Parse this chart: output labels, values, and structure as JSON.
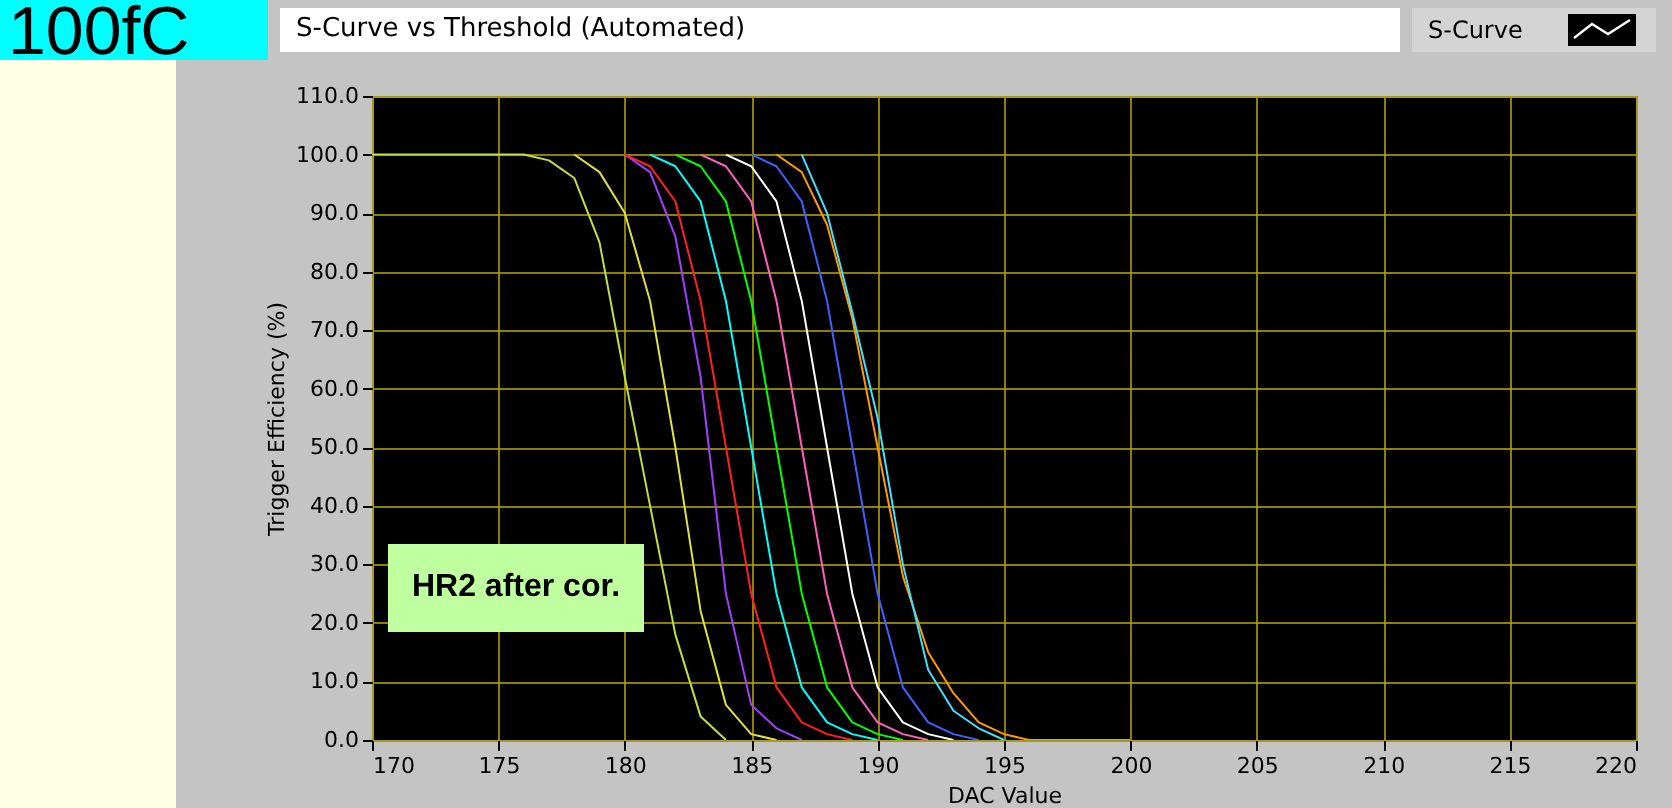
{
  "chart_data": {
    "type": "line",
    "title": "S-Curve vs Threshold (Automated)",
    "xlabel": "DAC Value",
    "ylabel": "Trigger Efficiency (%)",
    "annotations": [
      "100fC",
      "HR2 after cor.",
      "S-Curve"
    ],
    "series": [
      {
        "color": "#c0e040",
        "x": [
          170,
          171,
          172,
          173,
          174,
          175,
          176,
          177,
          178,
          179,
          180,
          181,
          182,
          183,
          184
        ],
        "values": [
          100,
          100,
          100,
          100,
          100,
          100,
          100,
          99,
          96,
          85,
          62,
          40,
          18,
          4,
          0
        ]
      },
      {
        "color": "#e0e040",
        "x": [
          178,
          179,
          180,
          181,
          182,
          183,
          184,
          185,
          186
        ],
        "values": [
          100,
          97,
          90,
          75,
          50,
          22,
          6,
          1,
          0
        ]
      },
      {
        "color": "#a040ff",
        "x": [
          180,
          181,
          182,
          183,
          184,
          185,
          186,
          187
        ],
        "values": [
          100,
          97,
          86,
          62,
          25,
          6,
          2,
          0
        ]
      },
      {
        "color": "#ff2020",
        "x": [
          180,
          181,
          182,
          183,
          184,
          185,
          186,
          187,
          188,
          189
        ],
        "values": [
          100,
          98,
          92,
          75,
          50,
          25,
          9,
          3,
          1,
          0
        ]
      },
      {
        "color": "#00ffff",
        "x": [
          181,
          182,
          183,
          184,
          185,
          186,
          187,
          188,
          189,
          190
        ],
        "values": [
          100,
          98,
          92,
          75,
          50,
          25,
          9,
          3,
          1,
          0
        ]
      },
      {
        "color": "#00ff00",
        "x": [
          182,
          183,
          184,
          185,
          186,
          187,
          188,
          189,
          190,
          191
        ],
        "values": [
          100,
          98,
          92,
          75,
          50,
          25,
          9,
          3,
          1,
          0
        ]
      },
      {
        "color": "#ff60c0",
        "x": [
          183,
          184,
          185,
          186,
          187,
          188,
          189,
          190,
          191,
          192
        ],
        "values": [
          100,
          98,
          92,
          75,
          50,
          25,
          9,
          3,
          1,
          0
        ]
      },
      {
        "color": "#ffffff",
        "x": [
          184,
          185,
          186,
          187,
          188,
          189,
          190,
          191,
          192,
          193
        ],
        "values": [
          100,
          98,
          92,
          75,
          50,
          25,
          9,
          3,
          1,
          0
        ]
      },
      {
        "color": "#4060ff",
        "x": [
          185,
          186,
          187,
          188,
          189,
          190,
          191,
          192,
          193,
          194
        ],
        "values": [
          100,
          98,
          92,
          75,
          50,
          25,
          9,
          3,
          1,
          0
        ]
      },
      {
        "color": "#ff9900",
        "x": [
          186,
          187,
          188,
          189,
          190,
          191,
          192,
          193,
          194,
          195,
          196,
          197,
          198,
          199,
          200
        ],
        "values": [
          100,
          97,
          88,
          72,
          50,
          28,
          15,
          8,
          3,
          1,
          0,
          0,
          0,
          0,
          0
        ]
      },
      {
        "color": "#40e0ff",
        "x": [
          187,
          188,
          189,
          190,
          191,
          192,
          193,
          194,
          195
        ],
        "values": [
          100,
          90,
          73,
          55,
          30,
          12,
          5,
          2,
          0
        ]
      }
    ],
    "xlim": [
      170,
      220
    ],
    "xticks": [
      170,
      175,
      180,
      185,
      190,
      195,
      200,
      205,
      210,
      215,
      220
    ],
    "ylim": [
      0,
      110
    ],
    "yticks": [
      {
        "value": 0,
        "label": "0.0"
      },
      {
        "value": 10,
        "label": "10.0"
      },
      {
        "value": 20,
        "label": "20.0"
      },
      {
        "value": 30,
        "label": "30.0"
      },
      {
        "value": 40,
        "label": "40.0"
      },
      {
        "value": 50,
        "label": "50.0"
      },
      {
        "value": 60,
        "label": "60.0"
      },
      {
        "value": 70,
        "label": "70.0"
      },
      {
        "value": 80,
        "label": "80.0"
      },
      {
        "value": 90,
        "label": "90.0"
      },
      {
        "value": 100,
        "label": "100.0"
      },
      {
        "value": 110,
        "label": "110.0"
      }
    ],
    "grid": true,
    "marker": "none",
    "line_style": "solid"
  }
}
